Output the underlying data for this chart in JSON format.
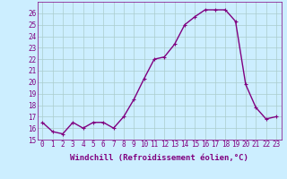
{
  "x": [
    0,
    1,
    2,
    3,
    4,
    5,
    6,
    7,
    8,
    9,
    10,
    11,
    12,
    13,
    14,
    15,
    16,
    17,
    18,
    19,
    20,
    21,
    22,
    23
  ],
  "y": [
    16.5,
    15.7,
    15.5,
    16.5,
    16.0,
    16.5,
    16.5,
    16.0,
    17.0,
    18.5,
    20.3,
    22.0,
    22.2,
    23.3,
    25.0,
    25.7,
    26.3,
    26.3,
    26.3,
    25.3,
    19.8,
    17.8,
    16.8,
    17.0
  ],
  "line_color": "#800080",
  "marker": "+",
  "marker_size": 3,
  "bg_color": "#cceeff",
  "grid_color": "#aacccc",
  "xlabel": "Windchill (Refroidissement éolien,°C)",
  "ylim": [
    15,
    27
  ],
  "xlim": [
    -0.5,
    23.5
  ],
  "yticks": [
    15,
    16,
    17,
    18,
    19,
    20,
    21,
    22,
    23,
    24,
    25,
    26
  ],
  "xticks": [
    0,
    1,
    2,
    3,
    4,
    5,
    6,
    7,
    8,
    9,
    10,
    11,
    12,
    13,
    14,
    15,
    16,
    17,
    18,
    19,
    20,
    21,
    22,
    23
  ],
  "tick_label_fontsize": 5.5,
  "xlabel_fontsize": 6.5,
  "line_width": 1.0,
  "spine_color": "#800080"
}
